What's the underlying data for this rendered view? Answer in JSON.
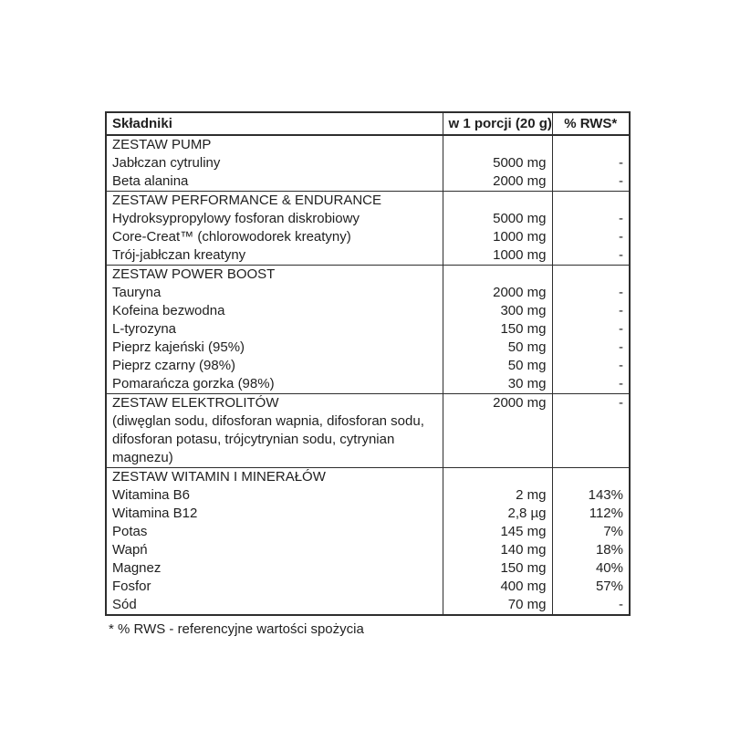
{
  "colors": {
    "background": "#ffffff",
    "border": "#2e2e2e",
    "text": "#1f1f1f"
  },
  "table": {
    "columns": [
      "Składniki",
      "w 1 porcji (20 g)",
      "% RWS*"
    ],
    "sections": [
      {
        "rows": [
          {
            "name": "ZESTAW PUMP",
            "amount": "",
            "rws": ""
          },
          {
            "name": "Jabłczan cytruliny",
            "amount": "5000 mg",
            "rws": "-"
          },
          {
            "name": "Beta alanina",
            "amount": "2000 mg",
            "rws": "-"
          }
        ]
      },
      {
        "rows": [
          {
            "name": "ZESTAW PERFORMANCE & ENDURANCE",
            "amount": "",
            "rws": ""
          },
          {
            "name": "Hydroksypropylowy fosforan diskrobiowy",
            "amount": "5000 mg",
            "rws": "-"
          },
          {
            "name": "Core-Creat™ (chlorowodorek kreatyny)",
            "amount": "1000 mg",
            "rws": "-"
          },
          {
            "name": "Trój-jabłczan kreatyny",
            "amount": "1000 mg",
            "rws": "-"
          }
        ]
      },
      {
        "rows": [
          {
            "name": "ZESTAW POWER BOOST",
            "amount": "",
            "rws": ""
          },
          {
            "name": "Tauryna",
            "amount": "2000 mg",
            "rws": "-"
          },
          {
            "name": "Kofeina bezwodna",
            "amount": "300 mg",
            "rws": "-"
          },
          {
            "name": "L-tyrozyna",
            "amount": "150 mg",
            "rws": "-"
          },
          {
            "name": "Pieprz kajeński (95%)",
            "amount": "50 mg",
            "rws": "-"
          },
          {
            "name": "Pieprz czarny (98%)",
            "amount": "50 mg",
            "rws": "-"
          },
          {
            "name": "Pomarańcza gorzka (98%)",
            "amount": "30 mg",
            "rws": "-"
          }
        ]
      },
      {
        "rows": [
          {
            "name": "ZESTAW ELEKTROLITÓW",
            "amount": "2000 mg",
            "rws": "-"
          },
          {
            "name": "(diwęglan sodu, difosforan wapnia, difosforan sodu, difosforan potasu, trójcytrynian sodu, cytrynian magnezu)",
            "amount": "",
            "rws": ""
          }
        ]
      },
      {
        "rows": [
          {
            "name": "ZESTAW WITAMIN I MINERAŁÓW",
            "amount": "",
            "rws": ""
          },
          {
            "name": "Witamina B6",
            "amount": "2 mg",
            "rws": "143%"
          },
          {
            "name": "Witamina B12",
            "amount": "2,8 µg",
            "rws": "112%"
          },
          {
            "name": "Potas",
            "amount": "145 mg",
            "rws": "7%"
          },
          {
            "name": "Wapń",
            "amount": "140 mg",
            "rws": "18%"
          },
          {
            "name": "Magnez",
            "amount": "150 mg",
            "rws": "40%"
          },
          {
            "name": "Fosfor",
            "amount": "400 mg",
            "rws": "57%"
          },
          {
            "name": "Sód",
            "amount": "70 mg",
            "rws": "-"
          }
        ]
      }
    ],
    "footnote": "* % RWS - referencyjne wartości spożycia"
  }
}
